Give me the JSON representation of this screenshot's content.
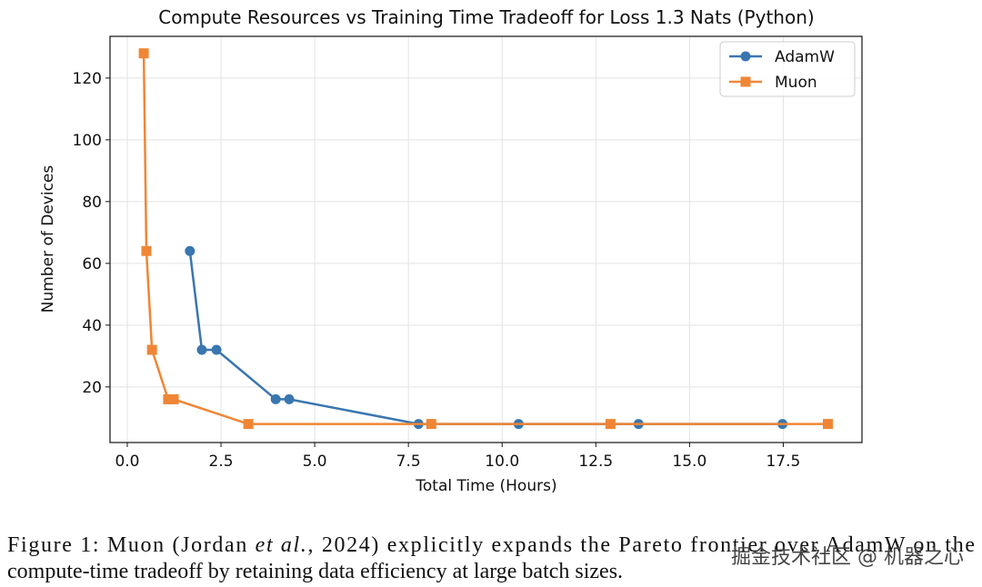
{
  "chart_data": {
    "type": "line",
    "title": "Compute Resources vs Training Time Tradeoff for Loss 1.3 Nats (Python)",
    "x_label": "Total Time (Hours)",
    "y_label": "Number of Devices",
    "xlim": [
      -0.46,
      19.6
    ],
    "ylim": [
      2,
      133.5
    ],
    "xticks": [
      {
        "value": 0,
        "label": "0.0"
      },
      2.5,
      {
        "value": 5,
        "label": "5.0"
      },
      7.5,
      {
        "value": 10,
        "label": "10.0"
      },
      12.5,
      {
        "value": 15,
        "label": "15.0"
      },
      17.5
    ],
    "yticks": [
      20,
      40,
      60,
      80,
      100,
      120
    ],
    "grid": true,
    "legend": "upper right",
    "series": [
      {
        "name": "AdamW",
        "color": "#3a76af",
        "marker": "circle",
        "x": [
          1.67,
          1.99,
          2.38,
          3.96,
          4.32,
          7.77,
          10.44,
          13.64,
          17.48
        ],
        "values": [
          64,
          32,
          32,
          16,
          16,
          8,
          8,
          8,
          8
        ]
      },
      {
        "name": "Muon",
        "color": "#ef8636",
        "marker": "square",
        "x": [
          0.44,
          0.51,
          0.66,
          1.09,
          1.24,
          3.23,
          8.11,
          12.89,
          18.69
        ],
        "values": [
          128,
          64,
          32,
          16,
          16,
          8,
          8,
          8,
          8
        ]
      }
    ]
  },
  "caption": {
    "line1_before": "Figure 1: Muon (Jordan ",
    "line1_italic": "et al.",
    "line1_after": ", 2024) explicitly expands the Pareto frontier over AdamW on the",
    "line2": "compute-time tradeoff by retaining data efficiency at large batch sizes."
  },
  "watermark": "掘金技术社区 @ 机器之心"
}
